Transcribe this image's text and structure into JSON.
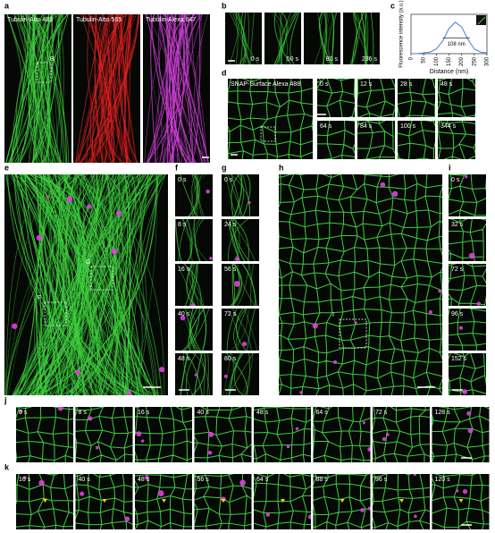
{
  "panels": {
    "a": {
      "label": "a",
      "channels": [
        "Tubulin-Atto 488",
        "Tubulin-Atto 565",
        "Tubulin-Alexa 647"
      ],
      "roi": "B"
    },
    "b": {
      "label": "b",
      "times": [
        "0 s",
        "50 s",
        "80 s",
        "236 s"
      ]
    },
    "c": {
      "label": "c",
      "chart": {
        "type": "line",
        "y_label": "Fluorescence intensity (a.u.)",
        "x_label": "Distance (nm)",
        "annotation": "108 nm",
        "x": [
          0,
          25,
          50,
          75,
          100,
          125,
          150,
          175,
          200,
          225,
          250,
          275,
          300
        ],
        "values": [
          0,
          0,
          0.5,
          1,
          3,
          8,
          16,
          20,
          17,
          9,
          3,
          1,
          0.5
        ],
        "color": "#4a7fd0",
        "xlim": [
          0,
          300
        ],
        "ylim": [
          0,
          25
        ],
        "xticks": [
          0,
          50,
          100,
          150,
          200,
          250,
          300
        ]
      }
    },
    "d": {
      "label": "d",
      "channel": "SNAP-Surface Alexa 488",
      "times": [
        "0 s",
        "12 s",
        "28 s",
        "48 s",
        "64 s",
        "84 s",
        "100 s",
        "344 s"
      ]
    },
    "e": {
      "label": "e",
      "rois": [
        "G",
        "F"
      ]
    },
    "f": {
      "label": "f",
      "times": [
        "0 s",
        "8 s",
        "16 s",
        "40 s",
        "48 s"
      ]
    },
    "g": {
      "label": "g",
      "times": [
        "0 s",
        "24 s",
        "56 s",
        "72 s",
        "80 s"
      ]
    },
    "h": {
      "label": "h",
      "roi": "I"
    },
    "i": {
      "label": "i",
      "times": [
        "0 s",
        "32 s",
        "72 s",
        "96 s",
        "152 s"
      ]
    },
    "j": {
      "label": "j",
      "times": [
        "0 s",
        "8 s",
        "16 s",
        "40 s",
        "48 s",
        "64 s",
        "72 s",
        "128 s"
      ]
    },
    "k": {
      "label": "k",
      "times": [
        "16 s",
        "40 s",
        "48 s",
        "56 s",
        "64 s",
        "88 s",
        "96 s",
        "120 s"
      ]
    }
  }
}
